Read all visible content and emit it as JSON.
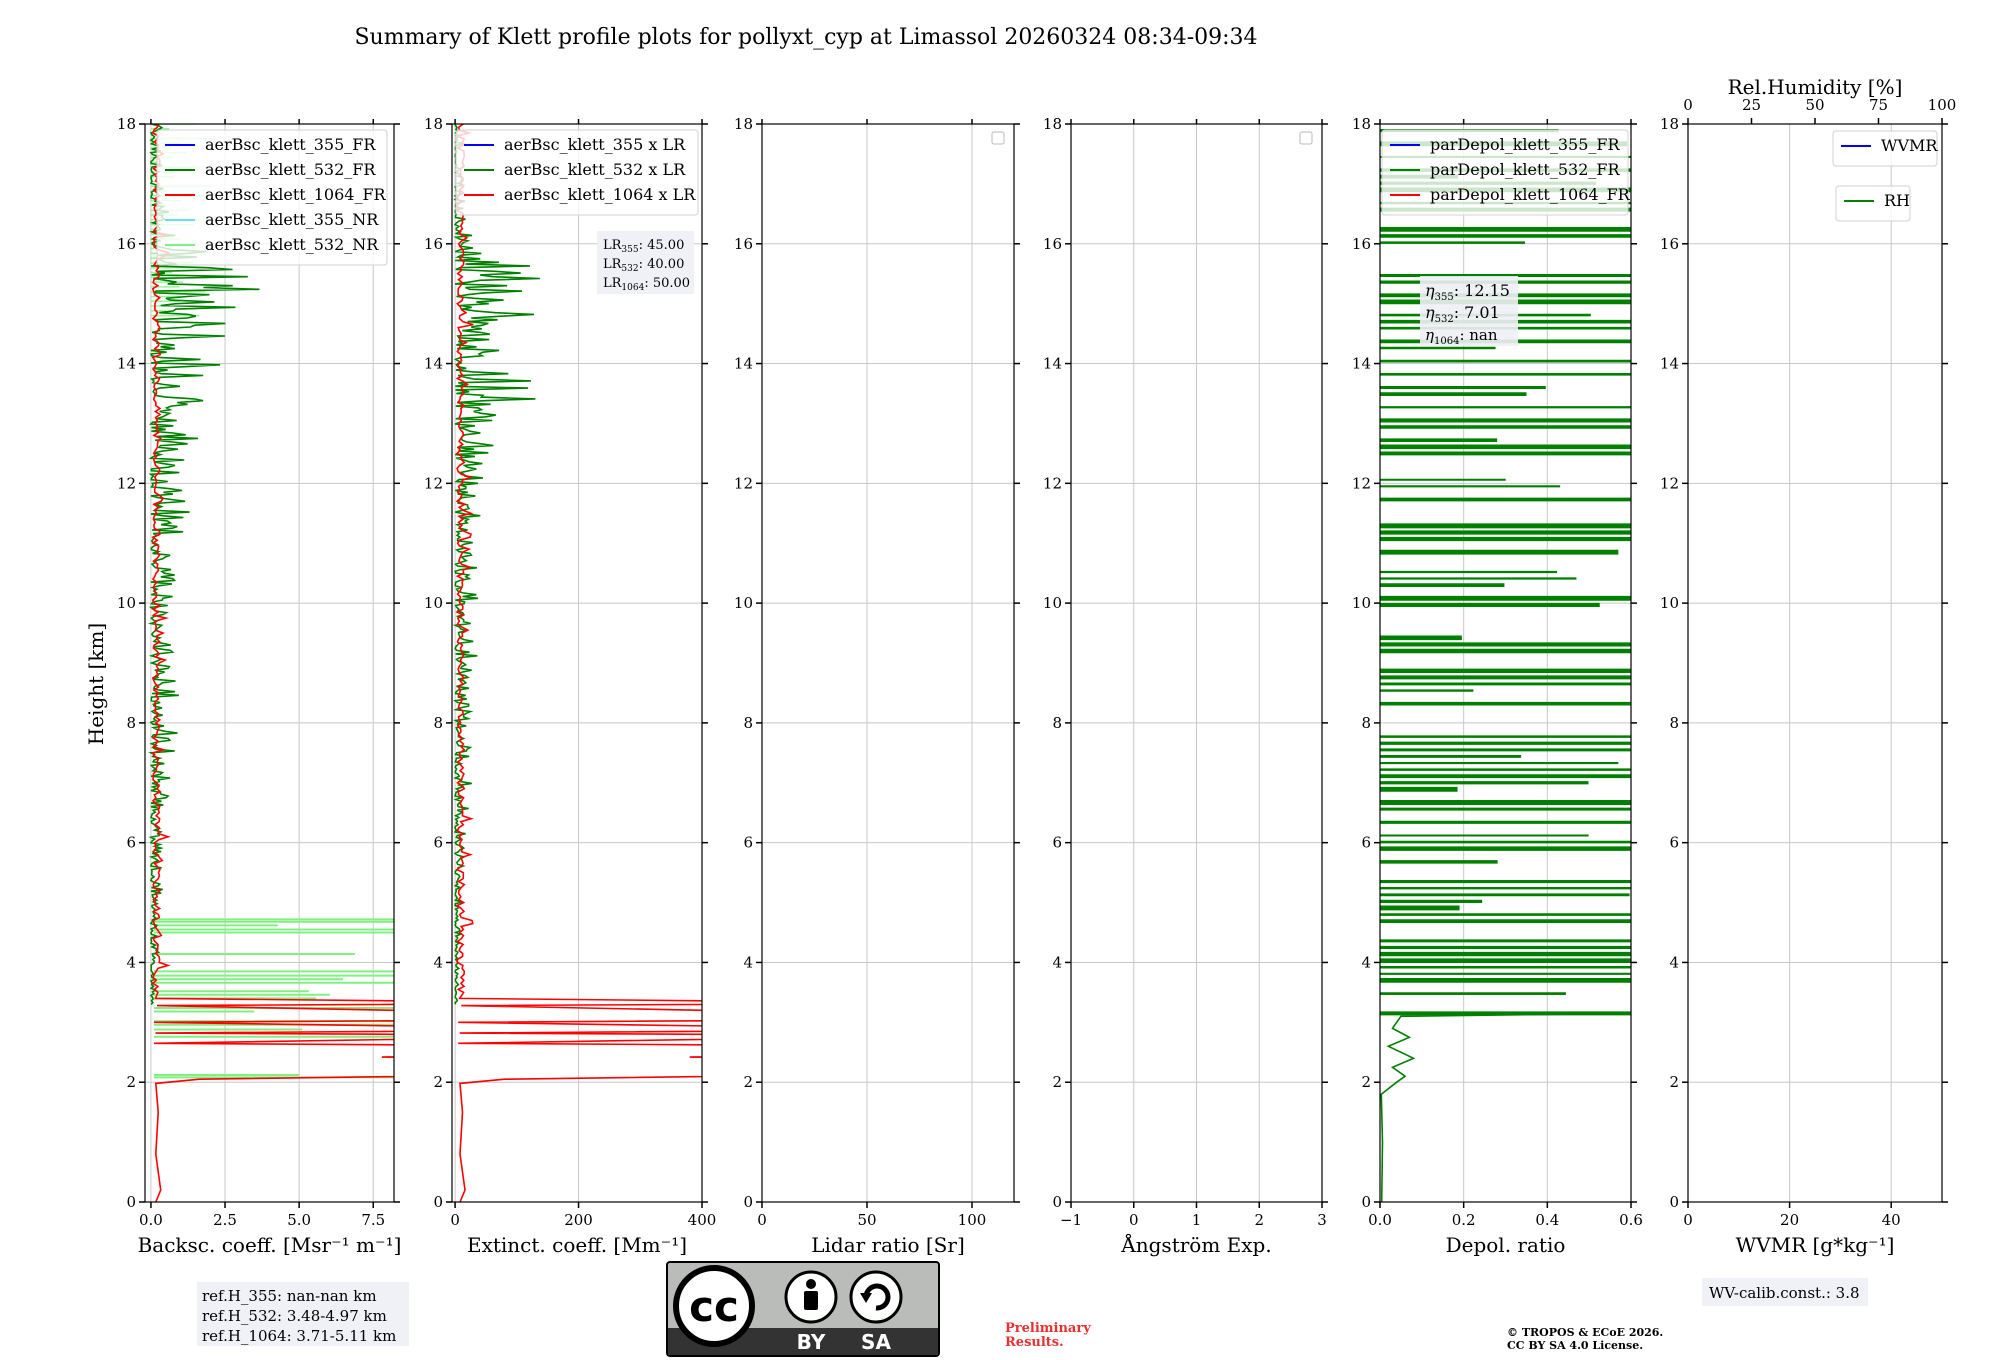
{
  "figure_title": "Summary of Klett profile plots for pollyxt_cyp at Limassol 20260324 08:34-09:34",
  "height_label": "Height [km]",
  "colors": {
    "c355": "#0000ff",
    "c532": "#008000",
    "c1064": "#ff0000",
    "c355nr": "#66e0f0",
    "c532nr": "#80f080",
    "grid": "#c8c8c8"
  },
  "chart_data": [
    {
      "id": "backscatter",
      "type": "line",
      "xlabel": "Backsc. coeff. [Msr⁻¹ m⁻¹]",
      "xlim": [
        -0.2,
        8.2
      ],
      "xticks": [
        0.0,
        2.5,
        5.0,
        7.5
      ],
      "xtick_labels": [
        "0.0",
        "2.5",
        "5.0",
        "7.5"
      ],
      "ylim": [
        0,
        18
      ],
      "yticks": [
        0,
        2,
        4,
        6,
        8,
        10,
        12,
        14,
        16,
        18
      ],
      "legend": [
        "aerBsc_klett_355_FR",
        "aerBsc_klett_532_FR",
        "aerBsc_klett_1064_FR",
        "aerBsc_klett_355_NR",
        "aerBsc_klett_532_NR"
      ],
      "legend_colors": [
        "c355",
        "c532",
        "c1064",
        "c355nr",
        "c532nr"
      ],
      "series": [
        {
          "name": "aerBsc_klett_532_NR",
          "color": "c532nr",
          "pattern": "nr_spikes",
          "points": [
            [
              8.2,
              4.7
            ],
            [
              8.2,
              4.65
            ],
            [
              3.6,
              4.5
            ],
            [
              8.2,
              4.1
            ],
            [
              5,
              3.8
            ],
            [
              8.2,
              3.72
            ],
            [
              6,
              3.5
            ],
            [
              8.2,
              3.45
            ],
            [
              8.2,
              3.2
            ],
            [
              8.2,
              2.9
            ],
            [
              8.2,
              2.1
            ],
            [
              0,
              2.0
            ],
            [
              0.15,
              0.3
            ]
          ]
        },
        {
          "name": "aerBsc_klett_532_FR",
          "color": "c532",
          "pattern": "noisy_fr",
          "points": [
            [
              0.3,
              18
            ],
            [
              0.6,
              16.2
            ],
            [
              4.3,
              15.6
            ],
            [
              2.5,
              14.5
            ],
            [
              1.8,
              14.2
            ],
            [
              3,
              13.4
            ],
            [
              1.8,
              13.0
            ],
            [
              1.3,
              12.2
            ],
            [
              0.8,
              10.0
            ],
            [
              0.9,
              8.5
            ],
            [
              0.4,
              6
            ],
            [
              0.3,
              4.5
            ],
            [
              0.1,
              3.3
            ]
          ]
        },
        {
          "name": "aerBsc_klett_1064_FR",
          "color": "c1064",
          "pattern": "layers",
          "points": [
            [
              0.2,
              3.3
            ],
            [
              8.2,
              3.3
            ],
            [
              8.2,
              3.1
            ],
            [
              8.2,
              2.9
            ],
            [
              8.2,
              2.8
            ],
            [
              8.2,
              2.6
            ],
            [
              8.2,
              2.5
            ],
            [
              7.8,
              2.4
            ],
            [
              8.2,
              2.1
            ],
            [
              0.2,
              2.0
            ],
            [
              0.1,
              0.1
            ]
          ]
        }
      ]
    },
    {
      "id": "extinction",
      "type": "line",
      "xlabel": "Extinct. coeff. [Mm⁻¹]",
      "xlim": [
        -5,
        400
      ],
      "xticks": [
        0,
        200,
        400
      ],
      "xtick_labels": [
        "0",
        "200",
        "400"
      ],
      "ylim": [
        0,
        18
      ],
      "yticks": [
        0,
        2,
        4,
        6,
        8,
        10,
        12,
        14,
        16,
        18
      ],
      "legend": [
        "aerBsc_klett_355 x LR",
        "aerBsc_klett_532 x LR",
        "aerBsc_klett_1064 x LR"
      ],
      "legend_colors": [
        "c355",
        "c532",
        "c1064"
      ],
      "lr_box": {
        "LR355": "45.00",
        "LR532": "40.00",
        "LR1064": "50.00"
      },
      "series": [
        {
          "name": "aerBsc_klett_532 x LR",
          "color": "c532",
          "pattern": "noisy_fr",
          "points": [
            [
              10,
              18
            ],
            [
              20,
              16.2
            ],
            [
              175,
              15.6
            ],
            [
              90,
              14.5
            ],
            [
              70,
              14.2
            ],
            [
              120,
              13.4
            ],
            [
              70,
              13.0
            ],
            [
              50,
              12.2
            ],
            [
              30,
              10.0
            ],
            [
              35,
              8.5
            ],
            [
              15,
              6
            ],
            [
              10,
              4.5
            ],
            [
              3,
              3.3
            ]
          ]
        },
        {
          "name": "aerBsc_klett_1064 x LR",
          "color": "c1064",
          "pattern": "layers",
          "points": [
            [
              5,
              3.3
            ],
            [
              400,
              3.3
            ],
            [
              400,
              3.1
            ],
            [
              400,
              2.9
            ],
            [
              400,
              2.8
            ],
            [
              400,
              2.6
            ],
            [
              400,
              2.5
            ],
            [
              320,
              2.4
            ],
            [
              400,
              2.1
            ],
            [
              5,
              2.0
            ],
            [
              5,
              0.1
            ]
          ]
        }
      ]
    },
    {
      "id": "lidar_ratio",
      "type": "line",
      "xlabel": "Lidar ratio [Sr]",
      "xlim": [
        0,
        120
      ],
      "xticks": [
        0,
        50,
        100
      ],
      "xtick_labels": [
        "0",
        "50",
        "100"
      ],
      "ylim": [
        0,
        18
      ],
      "yticks": [
        0,
        2,
        4,
        6,
        8,
        10,
        12,
        14,
        16,
        18
      ],
      "series": []
    },
    {
      "id": "angstrom",
      "type": "line",
      "xlabel": "Ångström Exp.",
      "xlim": [
        -1,
        3
      ],
      "xticks": [
        -1,
        0,
        1,
        2,
        3
      ],
      "xtick_labels": [
        "−1",
        "0",
        "1",
        "2",
        "3"
      ],
      "ylim": [
        0,
        18
      ],
      "yticks": [
        0,
        2,
        4,
        6,
        8,
        10,
        12,
        14,
        16,
        18
      ],
      "series": []
    },
    {
      "id": "depol",
      "type": "line",
      "xlabel": "Depol. ratio",
      "xlim": [
        0,
        0.6
      ],
      "xticks": [
        0.0,
        0.2,
        0.4,
        0.6
      ],
      "xtick_labels": [
        "0.0",
        "0.2",
        "0.4",
        "0.6"
      ],
      "ylim": [
        0,
        18
      ],
      "yticks": [
        0,
        2,
        4,
        6,
        8,
        10,
        12,
        14,
        16,
        18
      ],
      "legend": [
        "parDepol_klett_355_FR",
        "parDepol_klett_532_FR",
        "parDepol_klett_1064_FR"
      ],
      "legend_colors": [
        "c355",
        "c532",
        "c1064"
      ],
      "eta_box": {
        "eta355": "12.15",
        "eta532": "7.01",
        "eta1064": "nan"
      },
      "series": [
        {
          "name": "parDepol_klett_532_FR",
          "color": "c532",
          "pattern": "depol",
          "points": [
            [
              0.6,
              18
            ],
            [
              0.6,
              3.15
            ],
            [
              0.05,
              3.1
            ],
            [
              0.06,
              2.5
            ],
            [
              0.04,
              2.0
            ],
            [
              0.003,
              1.8
            ],
            [
              0.005,
              0
            ]
          ]
        }
      ]
    },
    {
      "id": "wvmr",
      "type": "line",
      "xlabel": "WVMR [g*kg⁻¹]",
      "xlim": [
        0,
        50
      ],
      "xticks": [
        0,
        20,
        40
      ],
      "xtick_labels": [
        "0",
        "20",
        "40"
      ],
      "top_xlabel": "Rel.Humidity [%]",
      "top_xlim": [
        0,
        100
      ],
      "top_xticks": [
        0,
        25,
        50,
        75,
        100
      ],
      "top_xtick_labels": [
        "0",
        "25",
        "50",
        "75",
        "100"
      ],
      "ylim": [
        0,
        18
      ],
      "yticks": [
        0,
        2,
        4,
        6,
        8,
        10,
        12,
        14,
        16,
        18
      ],
      "legend": [
        "WVMR"
      ],
      "legend_colors": [
        "c355"
      ],
      "legend2": [
        "RH"
      ],
      "legend2_colors": [
        "c532"
      ],
      "series": []
    }
  ],
  "refh_box": {
    "line1": "ref.H_355: nan-nan km",
    "line2": "ref.H_532: 3.48-4.97 km",
    "line3": "ref.H_1064: 3.71-5.11 km"
  },
  "wv_calib": "WV-calib.const.: 3.8",
  "license_badge": {
    "by": "BY",
    "sa": "SA",
    "cc": "cc"
  },
  "preliminary": {
    "line1": "Preliminary",
    "line2": "Results."
  },
  "copyright": {
    "line1": "© TROPOS & ECoE 2026.",
    "line2": "CC BY SA 4.0 License."
  }
}
